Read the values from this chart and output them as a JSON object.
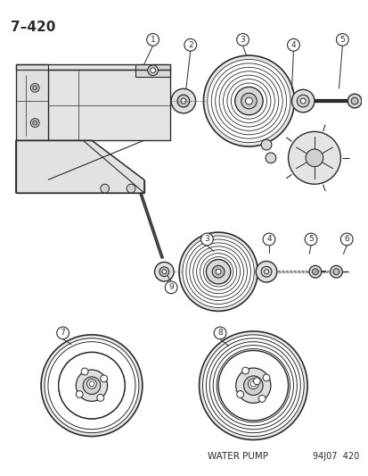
{
  "title": "7–420",
  "bg": "#ffffff",
  "lc": "#2a2a2a",
  "bottom_left": "WATER PUMP",
  "bottom_right": "94J07  420",
  "figsize": [
    4.14,
    5.33
  ],
  "dpi": 100
}
